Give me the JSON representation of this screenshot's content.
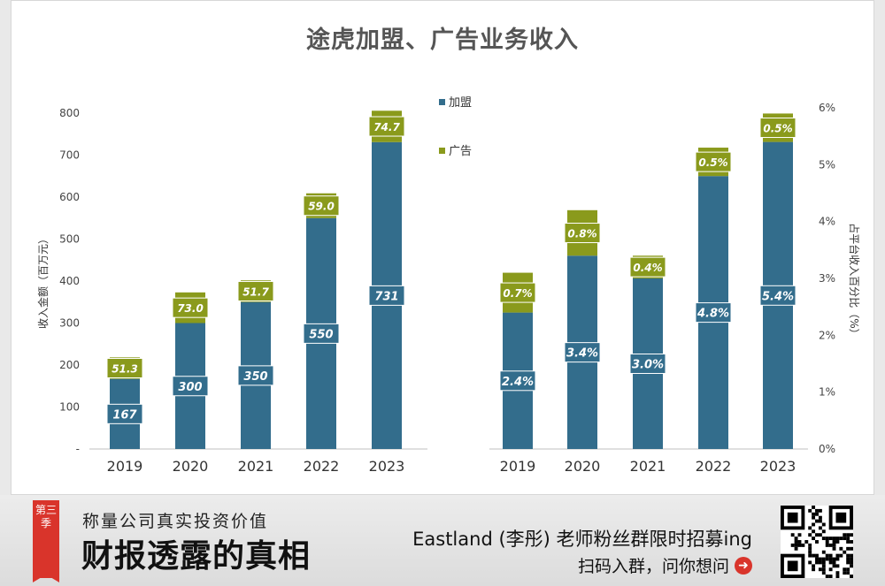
{
  "chart_data": {
    "type": "bar",
    "title": "途虎加盟、广告业务收入",
    "legend": {
      "placement": "top-center",
      "entries": [
        "加盟",
        "广告"
      ]
    },
    "colors": {
      "franchise": "#336d8c",
      "advertising": "#8a9a1c",
      "label_box_franchise": "#336d8c",
      "label_box_ad": "#8a9a1c"
    },
    "left_chart": {
      "ylabel": "收入金额（百万元）",
      "ylim": [
        0,
        800
      ],
      "yticks": [
        "-",
        "100",
        "200",
        "300",
        "400",
        "500",
        "600",
        "700",
        "800"
      ],
      "categories": [
        "2019",
        "2020",
        "2021",
        "2022",
        "2023"
      ],
      "series": [
        {
          "name": "加盟",
          "values": [
            167,
            300,
            350,
            550,
            731
          ],
          "labels": [
            "167",
            "300",
            "350",
            "550",
            "731"
          ]
        },
        {
          "name": "广告",
          "values": [
            51.3,
            73.0,
            51.7,
            59.0,
            74.7
          ],
          "labels": [
            "51.3",
            "73.0",
            "51.7",
            "59.0",
            "74.7"
          ]
        }
      ]
    },
    "right_chart": {
      "ylabel": "占平台收入百分比（%）",
      "ylim": [
        0,
        6
      ],
      "yticks": [
        "0%",
        "1%",
        "2%",
        "3%",
        "4%",
        "5%",
        "6%"
      ],
      "categories": [
        "2019",
        "2020",
        "2021",
        "2022",
        "2023"
      ],
      "series": [
        {
          "name": "加盟",
          "values": [
            2.4,
            3.4,
            3.0,
            4.8,
            5.4
          ],
          "labels": [
            "2.4%",
            "3.4%",
            "3.0%",
            "4.8%",
            "5.4%"
          ]
        },
        {
          "name": "广告",
          "values": [
            0.7,
            0.8,
            0.4,
            0.5,
            0.5
          ],
          "labels": [
            "0.7%",
            "0.8%",
            "0.4%",
            "0.5%",
            "0.5%"
          ]
        }
      ]
    }
  },
  "footer": {
    "ribbon": "第三季",
    "tagline": "称量公司真实投资价值",
    "brand": "财报透露的真相",
    "promo": "Eastland (李彤) 老师粉丝群限时招募ing",
    "cta": "扫码入群，问你想问",
    "cta_icon": "arrow-right-circle-icon"
  }
}
